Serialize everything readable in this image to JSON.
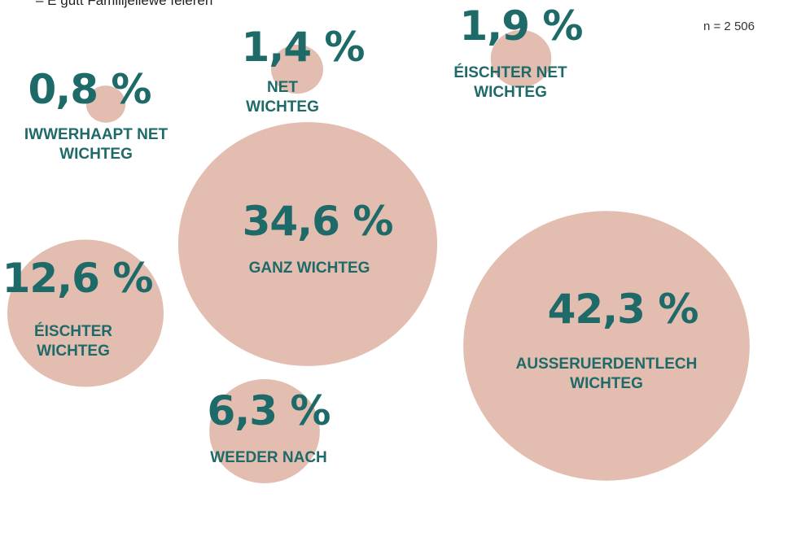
{
  "chart_data": {
    "type": "bubble",
    "title": "– E gutt Familljeliewe feieren",
    "note": "n = 2 506",
    "color": "#e3bdb0",
    "categories": [
      "IWWERHAAPT NET WICHTEG",
      "NET WICHTEG",
      "ÉISCHTER NET WICHTEG",
      "GANZ WICHTEG",
      "ÉISCHTER WICHTEG",
      "WEEDER NACH",
      "AUSSERUERDENTLECH WICHTEG"
    ],
    "values": [
      0.8,
      1.4,
      1.9,
      34.6,
      12.6,
      6.3,
      42.3
    ],
    "value_labels": [
      "0,8 %",
      "1,4 %",
      "1,9 %",
      "34,6 %",
      "12,6 %",
      "6,3 %",
      "42,3 %"
    ]
  }
}
